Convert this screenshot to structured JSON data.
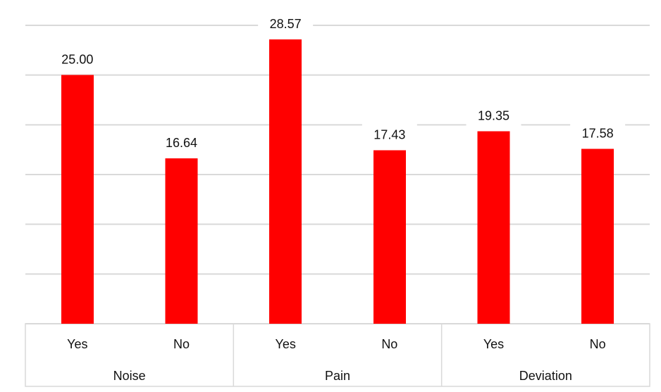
{
  "chart_data": {
    "type": "bar",
    "categories": [
      "Yes",
      "No",
      "Yes",
      "No",
      "Yes",
      "No"
    ],
    "groups": [
      {
        "name": "Noise",
        "categories": [
          "Yes",
          "No"
        ],
        "values": [
          25.0,
          16.64
        ]
      },
      {
        "name": "Pain",
        "categories": [
          "Yes",
          "No"
        ],
        "values": [
          28.57,
          17.43
        ]
      },
      {
        "name": "Deviation",
        "categories": [
          "Yes",
          "No"
        ],
        "values": [
          19.35,
          17.58
        ]
      }
    ],
    "values": [
      25.0,
      16.64,
      28.57,
      17.43,
      19.35,
      17.58
    ],
    "data_labels": [
      "25.00",
      "16.64",
      "28.57",
      "17.43",
      "19.35",
      "17.58"
    ],
    "title": "",
    "xlabel": "",
    "ylabel": "",
    "ylim": [
      0,
      30
    ],
    "grid": true,
    "bar_color": "#ff0000",
    "grid_color": "#d9d9d9"
  }
}
